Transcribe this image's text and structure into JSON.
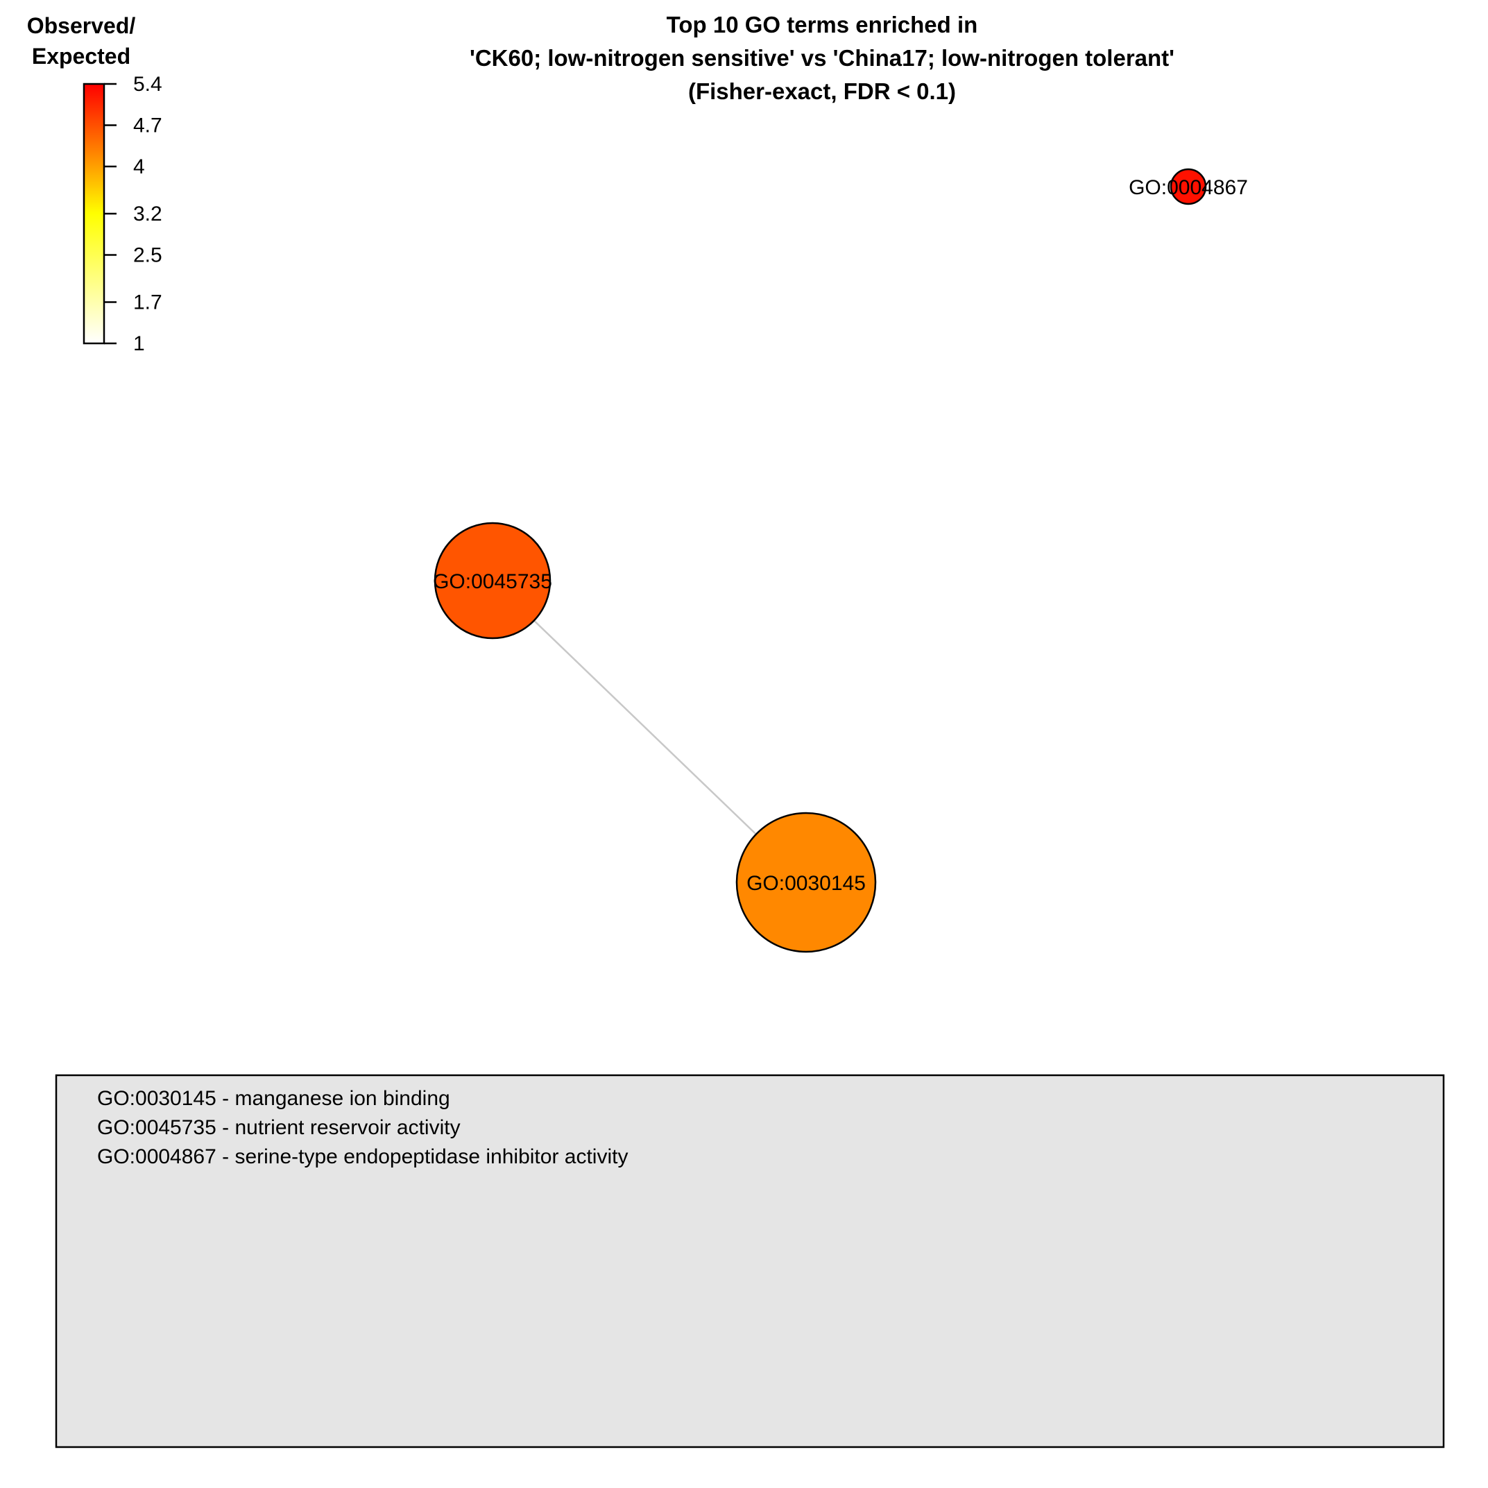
{
  "title": {
    "line1": "Top 10 GO terms enriched in",
    "line2": "'CK60; low-nitrogen sensitive' vs 'China17; low-nitrogen tolerant'",
    "line3": "(Fisher-exact, FDR < 0.1)"
  },
  "color_legend": {
    "title_line1": "Observed/",
    "title_line2": "Expected",
    "ticks": [
      "5.4",
      "4.7",
      "4",
      "3.2",
      "2.5",
      "1.7",
      "1"
    ],
    "tick_values": [
      5.4,
      4.7,
      4.0,
      3.2,
      2.5,
      1.7,
      1.0
    ],
    "min": 1,
    "max": 5.4,
    "gradient_colors": [
      "#ffffff",
      "#ffff00",
      "#ff8c00",
      "#ff0000"
    ]
  },
  "network": {
    "nodes": [
      {
        "id": "GO:0045735",
        "label": "GO:0045735",
        "color": "#ff5500"
      },
      {
        "id": "GO:0030145",
        "label": "GO:0030145",
        "color": "#ff8800"
      },
      {
        "id": "GO:0004867",
        "label": "GO:0004867",
        "color": "#ff1100"
      }
    ],
    "edges": [
      {
        "from": "GO:0045735",
        "to": "GO:0030145",
        "color": "#c8c8c8"
      }
    ]
  },
  "descriptions": {
    "background_color": "#e5e5e5",
    "lines": [
      "GO:0030145 - manganese ion binding",
      "GO:0045735 - nutrient reservoir activity",
      "GO:0004867 - serine-type endopeptidase inhibitor activity"
    ]
  }
}
